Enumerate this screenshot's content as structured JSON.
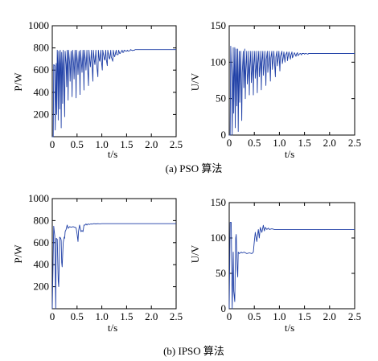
{
  "panels": [
    {
      "caption": "(a) PSO 算法",
      "chart_data": [
        {
          "type": "line",
          "title": "",
          "xlabel": "t/s",
          "ylabel": "P/W",
          "xlim": [
            0,
            2.5
          ],
          "ylim": [
            0,
            1000
          ],
          "xticks": [
            "0",
            "0.5",
            "1.0",
            "1.5",
            "2.0",
            "2.5"
          ],
          "yticks": [
            "200",
            "400",
            "600",
            "800",
            "1000"
          ],
          "grid": false,
          "series": [
            {
              "color": "#1f3fa6",
              "x": [
                0,
                0.02,
                0.03,
                0.05,
                0.06,
                0.08,
                0.09,
                0.1,
                0.11,
                0.12,
                0.13,
                0.14,
                0.15,
                0.16,
                0.17,
                0.18,
                0.19,
                0.2,
                0.21,
                0.22,
                0.23,
                0.25,
                0.26,
                0.28,
                0.29,
                0.3,
                0.31,
                0.32,
                0.33,
                0.35,
                0.36,
                0.38,
                0.39,
                0.4,
                0.41,
                0.43,
                0.44,
                0.46,
                0.47,
                0.48,
                0.49,
                0.51,
                0.52,
                0.54,
                0.55,
                0.56,
                0.57,
                0.59,
                0.6,
                0.62,
                0.63,
                0.64,
                0.65,
                0.67,
                0.68,
                0.7,
                0.71,
                0.73,
                0.74,
                0.76,
                0.77,
                0.79,
                0.8,
                0.82,
                0.83,
                0.85,
                0.86,
                0.88,
                0.89,
                0.92,
                0.93,
                0.95,
                0.96,
                0.98,
                0.99,
                1.01,
                1.02,
                1.05,
                1.06,
                1.08,
                1.09,
                1.11,
                1.12,
                1.15,
                1.16,
                1.18,
                1.19,
                1.22,
                1.23,
                1.25,
                1.26,
                1.29,
                1.3,
                1.33,
                1.34,
                1.36,
                1.37,
                1.41,
                1.42,
                1.44,
                1.45,
                1.49,
                1.5,
                1.52,
                1.53,
                1.57,
                1.58,
                1.62,
                1.63,
                1.66,
                1.67,
                1.72,
                2.5
              ],
              "y": [
                0,
                0,
                650,
                640,
                60,
                660,
                200,
                780,
                650,
                150,
                770,
                660,
                250,
                780,
                660,
                80,
                760,
                660,
                300,
                780,
                650,
                180,
                770,
                650,
                450,
                780,
                650,
                330,
                780,
                660,
                500,
                770,
                650,
                360,
                780,
                660,
                520,
                780,
                650,
                350,
                780,
                660,
                560,
                770,
                650,
                380,
                780,
                660,
                580,
                780,
                650,
                420,
                780,
                670,
                600,
                780,
                660,
                460,
                780,
                670,
                630,
                780,
                670,
                500,
                780,
                680,
                650,
                780,
                680,
                540,
                780,
                690,
                680,
                780,
                690,
                600,
                780,
                700,
                690,
                780,
                700,
                640,
                780,
                710,
                700,
                780,
                720,
                680,
                780,
                730,
                720,
                780,
                740,
                740,
                780,
                750,
                750,
                780,
                760,
                760,
                780,
                770,
                770,
                780,
                770,
                775,
                785,
                775,
                780,
                780,
                785,
                785,
                785
              ]
            }
          ]
        },
        {
          "type": "line",
          "title": "",
          "xlabel": "t/s",
          "ylabel": "U/V",
          "xlim": [
            0,
            2.5
          ],
          "ylim": [
            0,
            150
          ],
          "xticks": [
            "0",
            "0.5",
            "1.0",
            "1.5",
            "2.0",
            "2.5"
          ],
          "yticks": [
            "0",
            "50",
            "100",
            "150"
          ],
          "grid": false,
          "series": [
            {
              "color": "#1f3fa6",
              "x": [
                0,
                0.02,
                0.03,
                0.05,
                0.06,
                0.08,
                0.09,
                0.1,
                0.11,
                0.12,
                0.13,
                0.14,
                0.15,
                0.16,
                0.17,
                0.18,
                0.19,
                0.2,
                0.21,
                0.22,
                0.23,
                0.25,
                0.26,
                0.28,
                0.29,
                0.3,
                0.31,
                0.32,
                0.33,
                0.35,
                0.36,
                0.38,
                0.39,
                0.4,
                0.41,
                0.43,
                0.44,
                0.46,
                0.47,
                0.48,
                0.49,
                0.51,
                0.52,
                0.54,
                0.55,
                0.56,
                0.57,
                0.59,
                0.6,
                0.62,
                0.63,
                0.64,
                0.65,
                0.67,
                0.68,
                0.7,
                0.71,
                0.73,
                0.74,
                0.76,
                0.77,
                0.79,
                0.8,
                0.82,
                0.83,
                0.85,
                0.86,
                0.88,
                0.89,
                0.92,
                0.93,
                0.95,
                0.96,
                0.98,
                0.99,
                1.01,
                1.02,
                1.05,
                1.06,
                1.08,
                1.09,
                1.11,
                1.12,
                1.15,
                1.16,
                1.18,
                1.19,
                1.22,
                1.23,
                1.25,
                1.26,
                1.29,
                1.3,
                1.33,
                1.34,
                1.36,
                1.37,
                1.41,
                1.42,
                1.44,
                1.45,
                1.49,
                1.5,
                1.52,
                1.53,
                1.57,
                1.58,
                1.62,
                1.63,
                1.66,
                1.67,
                1.72,
                2.5
              ],
              "y": [
                0,
                0,
                122,
                80,
                0,
                120,
                30,
                82,
                120,
                10,
                82,
                118,
                40,
                80,
                118,
                5,
                82,
                115,
                45,
                84,
                115,
                20,
                85,
                115,
                65,
                86,
                118,
                50,
                88,
                115,
                70,
                90,
                115,
                55,
                92,
                115,
                72,
                94,
                115,
                55,
                95,
                115,
                78,
                96,
                115,
                58,
                98,
                115,
                80,
                100,
                115,
                62,
                100,
                115,
                82,
                102,
                115,
                68,
                104,
                115,
                86,
                105,
                115,
                74,
                106,
                115,
                90,
                106,
                115,
                80,
                107,
                115,
                95,
                108,
                115,
                88,
                108,
                115,
                98,
                108,
                114,
                100,
                109,
                114,
                102,
                110,
                114,
                104,
                110,
                114,
                106,
                111,
                113,
                108,
                111,
                113,
                109,
                112,
                112,
                110,
                112,
                112,
                111,
                112,
                112,
                111,
                112,
                112,
                112,
                112,
                112,
                112,
                112
              ]
            }
          ]
        }
      ]
    },
    {
      "caption": "(b) IPSO 算法",
      "chart_data": [
        {
          "type": "line",
          "title": "",
          "xlabel": "t/s",
          "ylabel": "P/W",
          "xlim": [
            0,
            2.5
          ],
          "ylim": [
            0,
            1000
          ],
          "xticks": [
            "0",
            "0.5",
            "1.0",
            "1.5",
            "2.0",
            "2.5"
          ],
          "yticks": [
            "200",
            "400",
            "600",
            "800",
            "1000"
          ],
          "grid": false,
          "series": [
            {
              "color": "#1f3fa6",
              "x": [
                0,
                0.03,
                0.05,
                0.07,
                0.08,
                0.1,
                0.12,
                0.13,
                0.14,
                0.15,
                0.17,
                0.18,
                0.19,
                0.2,
                0.22,
                0.24,
                0.25,
                0.26,
                0.28,
                0.3,
                0.32,
                0.35,
                0.38,
                0.42,
                0.45,
                0.48,
                0.5,
                0.52,
                0.53,
                0.55,
                0.58,
                0.6,
                0.62,
                0.64,
                0.66,
                0.68,
                0.7,
                0.72,
                0.75,
                0.78,
                0.8,
                0.84,
                0.88,
                0.92,
                0.96,
                1.0,
                1.05,
                1.1,
                2.5
              ],
              "y": [
                0,
                750,
                660,
                0,
                640,
                630,
                250,
                200,
                400,
                650,
                640,
                620,
                420,
                380,
                600,
                650,
                640,
                700,
                720,
                760,
                730,
                745,
                740,
                745,
                740,
                735,
                680,
                610,
                700,
                760,
                700,
                710,
                700,
                760,
                760,
                770,
                760,
                770,
                765,
                770,
                768,
                772,
                770,
                772,
                771,
                772,
                772,
                772,
                772
              ]
            }
          ]
        },
        {
          "type": "line",
          "title": "",
          "xlabel": "t/s",
          "ylabel": "U/V",
          "xlim": [
            0,
            2.5
          ],
          "ylim": [
            0,
            150
          ],
          "xticks": [
            "0",
            "0.5",
            "1.0",
            "1.5",
            "2.0",
            "2.5"
          ],
          "yticks": [
            "0",
            "50",
            "100",
            "150"
          ],
          "grid": false,
          "series": [
            {
              "color": "#1f3fa6",
              "x": [
                0,
                0.02,
                0.04,
                0.06,
                0.08,
                0.09,
                0.11,
                0.12,
                0.13,
                0.14,
                0.16,
                0.17,
                0.18,
                0.2,
                0.22,
                0.24,
                0.26,
                0.3,
                0.35,
                0.4,
                0.45,
                0.48,
                0.5,
                0.52,
                0.55,
                0.58,
                0.6,
                0.62,
                0.65,
                0.68,
                0.7,
                0.72,
                0.75,
                0.78,
                0.8,
                0.85,
                0.9,
                0.95,
                1.0,
                1.05,
                1.1,
                2.5
              ],
              "y": [
                0,
                122,
                122,
                0,
                80,
                25,
                10,
                60,
                100,
                105,
                55,
                45,
                80,
                78,
                79,
                80,
                79,
                80,
                78,
                79,
                78,
                80,
                95,
                108,
                95,
                112,
                100,
                115,
                108,
                118,
                110,
                115,
                112,
                114,
                112,
                113,
                112,
                112,
                112,
                112,
                112,
                112
              ]
            }
          ]
        }
      ]
    }
  ]
}
